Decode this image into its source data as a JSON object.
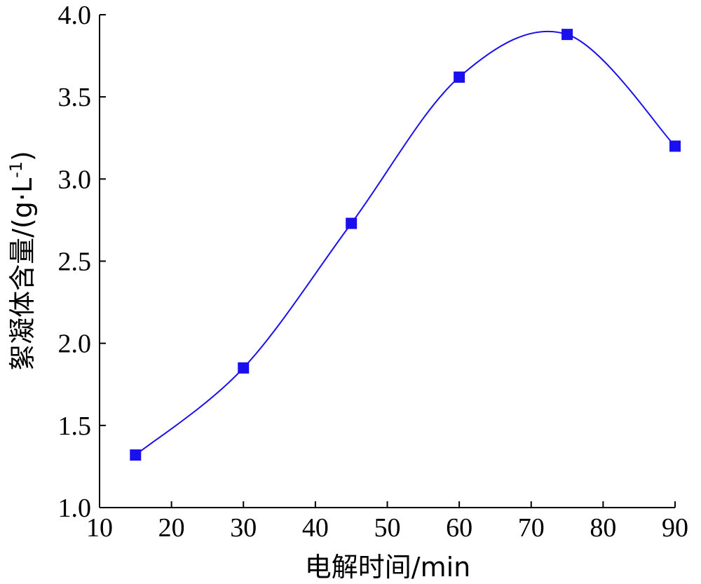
{
  "chart_data": {
    "type": "line",
    "x": [
      15,
      30,
      45,
      60,
      75,
      90
    ],
    "series": [
      {
        "values": [
          1.32,
          1.85,
          2.73,
          3.62,
          3.88,
          3.2
        ]
      }
    ],
    "curve": "smooth",
    "marker": "square",
    "color": "#1a10ee",
    "xlim": [
      10,
      90
    ],
    "ylim": [
      1.0,
      4.0
    ],
    "xticks": [
      "10",
      "20",
      "30",
      "40",
      "50",
      "60",
      "70",
      "80",
      "90"
    ],
    "yticks": [
      "1.0",
      "1.5",
      "2.0",
      "2.5",
      "3.0",
      "3.5",
      "4.0"
    ],
    "xlabel": "电解时间/min",
    "ylabel": "絮凝体含量/(g·L",
    "ylabel_sup": "-1",
    "ylabel_end": ")",
    "grid": false
  }
}
